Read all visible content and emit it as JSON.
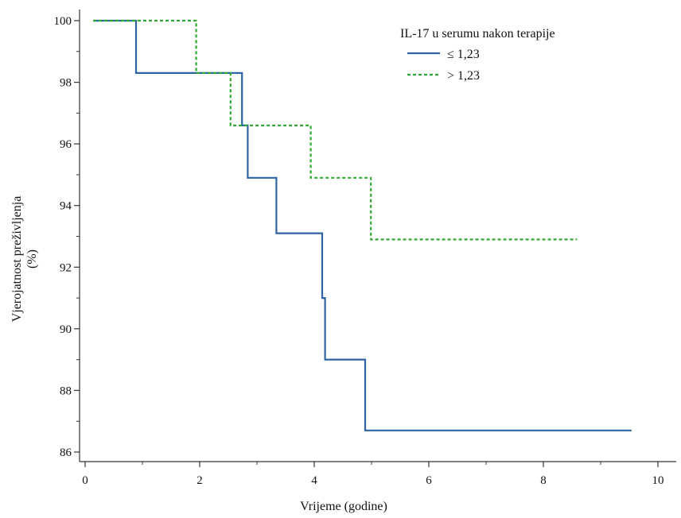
{
  "chart_data": {
    "type": "line",
    "subtype": "step",
    "xlabel": "Vrijeme (godine)",
    "ylabel_line1": "Vjerojatnost preživljenja",
    "ylabel_line2": "(%)",
    "xlim": [
      0,
      10
    ],
    "ylim": [
      86,
      100
    ],
    "x_ticks": [
      0,
      2,
      4,
      6,
      8,
      10
    ],
    "y_ticks": [
      86,
      88,
      90,
      92,
      94,
      96,
      98,
      100
    ],
    "grid": false,
    "legend": {
      "title": "IL-17 u serumu nakon terapije",
      "position": "top-right"
    },
    "series": [
      {
        "name": "≤ 1,23",
        "color": "#2e63a6",
        "dash": "solid",
        "points": [
          [
            0,
            100
          ],
          [
            0.75,
            100
          ],
          [
            0.75,
            98.3
          ],
          [
            2.6,
            98.3
          ],
          [
            2.6,
            96.6
          ],
          [
            2.7,
            96.6
          ],
          [
            2.7,
            94.9
          ],
          [
            3.2,
            94.9
          ],
          [
            3.2,
            93.1
          ],
          [
            4.0,
            93.1
          ],
          [
            4.0,
            91.0
          ],
          [
            4.05,
            91.0
          ],
          [
            4.05,
            89.0
          ],
          [
            4.75,
            89.0
          ],
          [
            4.75,
            86.7
          ],
          [
            9.4,
            86.7
          ]
        ]
      },
      {
        "name": "> 1,23",
        "color": "#2eaa2e",
        "dash": "dashed",
        "points": [
          [
            0,
            100
          ],
          [
            1.8,
            100
          ],
          [
            1.8,
            98.3
          ],
          [
            2.4,
            98.3
          ],
          [
            2.4,
            96.6
          ],
          [
            3.8,
            96.6
          ],
          [
            3.8,
            94.9
          ],
          [
            4.85,
            94.9
          ],
          [
            4.85,
            92.9
          ],
          [
            8.45,
            92.9
          ]
        ]
      }
    ]
  }
}
